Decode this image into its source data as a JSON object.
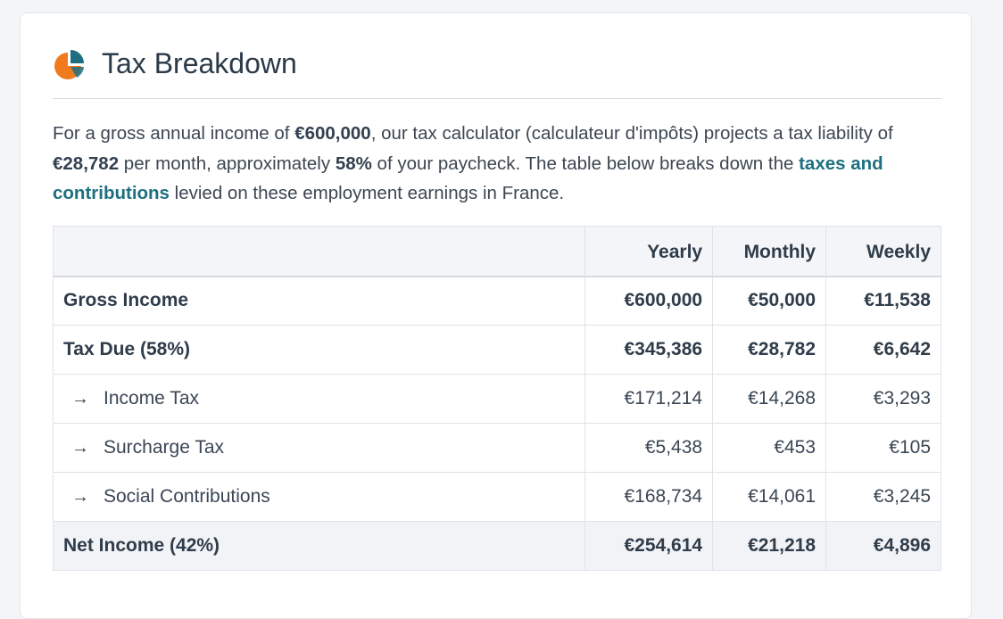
{
  "header": {
    "title": "Tax Breakdown",
    "icon": "pie-chart-icon",
    "colors": {
      "slice_orange": "#f07a1e",
      "slice_teal": "#1d6f80"
    }
  },
  "intro": {
    "p1": "For a gross annual income of ",
    "gross_income": "€600,000",
    "p2": ", our tax calculator (calculateur d'impôts) projects a tax liability of ",
    "monthly_tax": "€28,782",
    "p3": " per month, approximately ",
    "tax_rate": "58%",
    "p4": " of your paycheck. The table below breaks down the ",
    "link_text": "taxes and contributions",
    "p5": " levied on these employment earnings in France."
  },
  "table": {
    "headers": {
      "label": "",
      "yearly": "Yearly",
      "monthly": "Monthly",
      "weekly": "Weekly"
    },
    "rows": [
      {
        "label": "Gross Income",
        "yearly": "€600,000",
        "monthly": "€50,000",
        "weekly": "€11,538"
      },
      {
        "label": "Tax Due (58%)",
        "yearly": "€345,386",
        "monthly": "€28,782",
        "weekly": "€6,642"
      },
      {
        "label": "Income Tax",
        "yearly": "€171,214",
        "monthly": "€14,268",
        "weekly": "€3,293"
      },
      {
        "label": "Surcharge Tax",
        "yearly": "€5,438",
        "monthly": "€453",
        "weekly": "€105"
      },
      {
        "label": "Social Contributions",
        "yearly": "€168,734",
        "monthly": "€14,061",
        "weekly": "€3,245"
      },
      {
        "label": "Net Income (42%)",
        "yearly": "€254,614",
        "monthly": "€21,218",
        "weekly": "€4,896"
      }
    ]
  }
}
